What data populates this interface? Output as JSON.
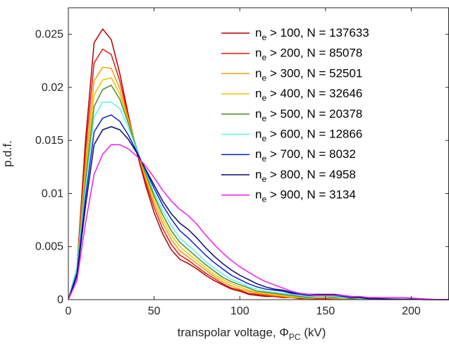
{
  "chart_data": {
    "type": "line",
    "xlabel": "transpolar voltage, Φ_PC (kV)",
    "xlabel_parts": {
      "main": "transpolar voltage, Φ",
      "sub": "PC",
      "tail": " (kV)"
    },
    "ylabel": "p.d.f.",
    "xlim": [
      0,
      222
    ],
    "ylim": [
      0,
      0.0275
    ],
    "x_ticks": [
      0,
      50,
      100,
      150,
      200
    ],
    "y_ticks": [
      0,
      0.005,
      0.01,
      0.015,
      0.02,
      0.025
    ],
    "x_tick_labels": [
      "0",
      "50",
      "100",
      "150",
      "200"
    ],
    "y_tick_labels": [
      "0",
      "0.005",
      "0.01",
      "0.015",
      "0.02",
      "0.025"
    ],
    "grid": false,
    "legend_position": "top-right",
    "x": [
      0,
      5,
      10,
      15,
      20,
      25,
      30,
      35,
      40,
      45,
      50,
      55,
      60,
      65,
      70,
      75,
      80,
      85,
      90,
      95,
      100,
      105,
      110,
      115,
      120,
      125,
      130,
      135,
      140,
      145,
      150,
      155,
      160,
      165,
      170,
      175,
      180,
      185,
      190,
      195,
      200,
      205,
      210,
      215,
      222
    ],
    "series": [
      {
        "name": "n_e > 100, N = 137633",
        "label_main": "n",
        "label_sub": "e",
        "label_tail": " > 100, N = 137633",
        "color": "#b30000",
        "values": [
          0,
          0.003,
          0.015,
          0.0242,
          0.0255,
          0.0245,
          0.0213,
          0.0174,
          0.0138,
          0.0108,
          0.0082,
          0.0062,
          0.0047,
          0.0038,
          0.0034,
          0.0029,
          0.0023,
          0.0018,
          0.0014,
          0.001,
          0.0008,
          0.0005,
          0.0004,
          0.0003,
          0.0003,
          0.0002,
          0.0002,
          0.0001,
          0.0001,
          0.0001,
          0.0001,
          0.0001,
          0.0001,
          0.0001,
          5e-05,
          5e-05,
          5e-05,
          5e-05,
          5e-05,
          3e-05,
          3e-05,
          2e-05,
          1e-05,
          1e-05,
          0
        ]
      },
      {
        "name": "n_e > 200, N = 85078",
        "label_main": "n",
        "label_sub": "e",
        "label_tail": " > 200, N = 85078",
        "color": "#e8160c",
        "values": [
          0,
          0.003,
          0.014,
          0.0223,
          0.0236,
          0.0231,
          0.0206,
          0.0172,
          0.014,
          0.0111,
          0.0087,
          0.0067,
          0.0052,
          0.0042,
          0.0037,
          0.0031,
          0.0025,
          0.002,
          0.0015,
          0.0011,
          0.0009,
          0.0006,
          0.0005,
          0.0004,
          0.0003,
          0.0003,
          0.0002,
          0.0002,
          0.0001,
          0.0001,
          0.0001,
          0.0001,
          0.0001,
          0.0001,
          5e-05,
          5e-05,
          5e-05,
          5e-05,
          5e-05,
          3e-05,
          3e-05,
          2e-05,
          1e-05,
          1e-05,
          0
        ]
      },
      {
        "name": "n_e > 300, N = 52501",
        "label_main": "n",
        "label_sub": "e",
        "label_tail": " > 300, N = 52501",
        "color": "#f29f05",
        "values": [
          0,
          0.003,
          0.0128,
          0.0206,
          0.0219,
          0.0218,
          0.0199,
          0.017,
          0.0141,
          0.0114,
          0.0091,
          0.0072,
          0.0057,
          0.0046,
          0.004,
          0.0034,
          0.0028,
          0.0022,
          0.0017,
          0.0013,
          0.001,
          0.0008,
          0.0006,
          0.0005,
          0.0004,
          0.0003,
          0.0002,
          0.0002,
          0.0001,
          0.0002,
          0.0002,
          0.0001,
          0.0001,
          0.0001,
          5e-05,
          5e-05,
          5e-05,
          5e-05,
          5e-05,
          3e-05,
          3e-05,
          2e-05,
          1e-05,
          1e-05,
          0
        ]
      },
      {
        "name": "n_e > 400, N = 32646",
        "label_main": "n",
        "label_sub": "e",
        "label_tail": " > 400, N = 32646",
        "color": "#e6c700",
        "values": [
          0,
          0.003,
          0.012,
          0.0193,
          0.0207,
          0.0209,
          0.0194,
          0.0168,
          0.0142,
          0.0117,
          0.0095,
          0.0076,
          0.0061,
          0.005,
          0.0043,
          0.0037,
          0.003,
          0.0024,
          0.0019,
          0.0015,
          0.0012,
          0.0009,
          0.0007,
          0.0006,
          0.0005,
          0.0004,
          0.0003,
          0.0002,
          0.0002,
          0.0002,
          0.0002,
          0.0002,
          0.0001,
          0.0001,
          7e-05,
          5e-05,
          5e-05,
          5e-05,
          5e-05,
          3e-05,
          3e-05,
          2e-05,
          1e-05,
          1e-05,
          0
        ]
      },
      {
        "name": "n_e > 500, N = 20378",
        "label_main": "n",
        "label_sub": "e",
        "label_tail": " > 500, N = 20378",
        "color": "#4f8a2a",
        "values": [
          0,
          0.003,
          0.0112,
          0.0182,
          0.0198,
          0.0202,
          0.0189,
          0.0166,
          0.0142,
          0.0119,
          0.0098,
          0.008,
          0.0065,
          0.0054,
          0.0047,
          0.004,
          0.0033,
          0.0027,
          0.0021,
          0.0017,
          0.0014,
          0.0011,
          0.0008,
          0.0007,
          0.0006,
          0.0005,
          0.0004,
          0.0003,
          0.0002,
          0.0003,
          0.0003,
          0.0002,
          0.0002,
          0.0001,
          0.0001,
          7e-05,
          5e-05,
          5e-05,
          5e-05,
          3e-05,
          3e-05,
          2e-05,
          1e-05,
          1e-05,
          0
        ]
      },
      {
        "name": "n_e > 600, N = 12866",
        "label_main": "n",
        "label_sub": "e",
        "label_tail": " > 600, N = 12866",
        "color": "#5cf0f0",
        "values": [
          0,
          0.003,
          0.0105,
          0.0172,
          0.0186,
          0.0186,
          0.018,
          0.0162,
          0.0141,
          0.0121,
          0.0101,
          0.0084,
          0.007,
          0.0058,
          0.0051,
          0.0044,
          0.0036,
          0.003,
          0.0024,
          0.0019,
          0.0016,
          0.0012,
          0.001,
          0.0008,
          0.0007,
          0.0006,
          0.0005,
          0.0004,
          0.0003,
          0.0003,
          0.0003,
          0.0003,
          0.0002,
          0.0002,
          0.0001,
          0.0001,
          7e-05,
          5e-05,
          5e-05,
          3e-05,
          3e-05,
          2e-05,
          1e-05,
          1e-05,
          0
        ]
      },
      {
        "name": "n_e > 700, N = 8032",
        "label_main": "n",
        "label_sub": "e",
        "label_tail": " > 700, N = 8032",
        "color": "#0a1fd6",
        "values": [
          0,
          0.0025,
          0.0096,
          0.0158,
          0.0171,
          0.0174,
          0.0168,
          0.0155,
          0.0139,
          0.0122,
          0.0105,
          0.0089,
          0.0076,
          0.0065,
          0.0058,
          0.005,
          0.0042,
          0.0035,
          0.0029,
          0.0023,
          0.0019,
          0.0015,
          0.0012,
          0.001,
          0.0009,
          0.0008,
          0.0006,
          0.0005,
          0.0004,
          0.0004,
          0.0004,
          0.0004,
          0.0003,
          0.0002,
          0.0002,
          0.0001,
          0.0001,
          7e-05,
          5e-05,
          3e-05,
          3e-05,
          2e-05,
          1e-05,
          1e-05,
          0
        ]
      },
      {
        "name": "n_e > 800, N = 4958",
        "label_main": "n",
        "label_sub": "e",
        "label_tail": " > 800, N = 4958",
        "color": "#0b0b6e",
        "values": [
          0,
          0.0022,
          0.0088,
          0.0146,
          0.016,
          0.0163,
          0.016,
          0.0151,
          0.0138,
          0.0123,
          0.0108,
          0.0093,
          0.0081,
          0.0072,
          0.0066,
          0.0058,
          0.0049,
          0.0041,
          0.0034,
          0.0028,
          0.0023,
          0.0019,
          0.0015,
          0.0012,
          0.001,
          0.0009,
          0.0007,
          0.0006,
          0.0005,
          0.0005,
          0.0005,
          0.0005,
          0.0004,
          0.0003,
          0.0002,
          0.0001,
          0.0001,
          7e-05,
          5e-05,
          3e-05,
          3e-05,
          2e-05,
          1e-05,
          1e-05,
          0
        ]
      },
      {
        "name": "n_e > 900, N = 3134",
        "label_main": "n",
        "label_sub": "e",
        "label_tail": " > 900, N = 3134",
        "color": "#ee1ee8",
        "values": [
          0,
          0.0018,
          0.0072,
          0.0118,
          0.0137,
          0.0146,
          0.0146,
          0.0142,
          0.0135,
          0.0126,
          0.0115,
          0.0103,
          0.0093,
          0.0085,
          0.0079,
          0.0071,
          0.0061,
          0.0052,
          0.0044,
          0.0037,
          0.0031,
          0.0026,
          0.0021,
          0.0017,
          0.0014,
          0.0011,
          0.0008,
          0.0006,
          0.0005,
          0.0004,
          0.0004,
          0.0004,
          0.0004,
          0.0003,
          0.0003,
          0.0002,
          0.0002,
          0.0002,
          0.0002,
          0.0002,
          0.00015,
          0.0001,
          5e-05,
          2e-05,
          0
        ]
      }
    ]
  }
}
